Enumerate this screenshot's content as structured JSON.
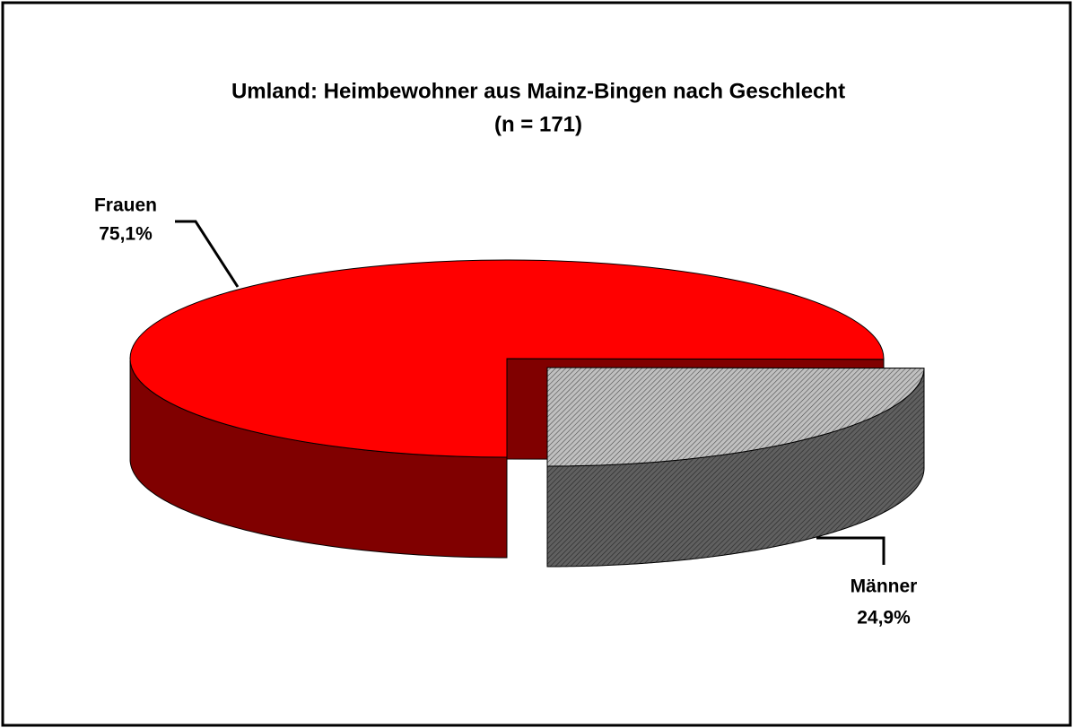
{
  "chart_data": {
    "type": "pie",
    "title": "Umland: Heimbewohner aus Mainz-Bingen nach Geschlecht",
    "subtitle": "(n = 171)",
    "categories": [
      "Frauen",
      "Männer"
    ],
    "values": [
      75.1,
      24.9
    ],
    "value_labels": [
      "75,1%",
      "24,9%"
    ],
    "colors": [
      "#ff0000",
      "#c0c0c0"
    ]
  }
}
